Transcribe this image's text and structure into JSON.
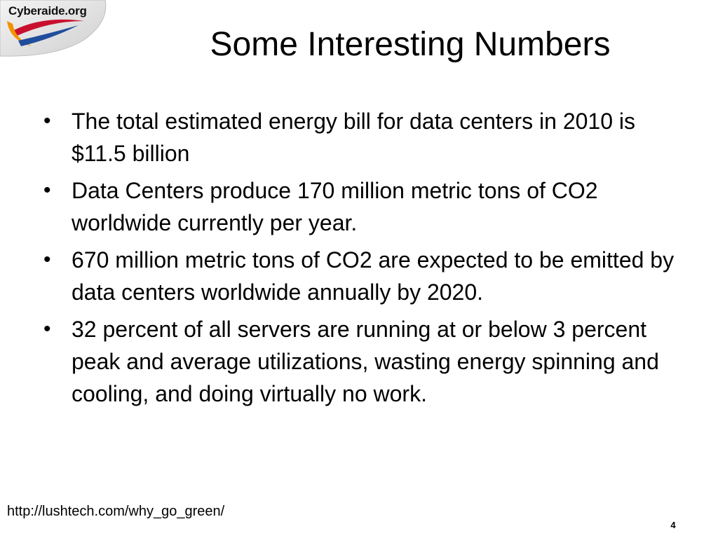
{
  "logo": {
    "text": "Cyberaide.org",
    "icon": "cyberaide-logo-icon",
    "colors": {
      "badge": "#e6e6e6",
      "swoosh_red": "#c8102e",
      "swoosh_orange": "#f39200",
      "swoosh_blue": "#1f4e9c"
    }
  },
  "slide": {
    "title": "Some Interesting Numbers",
    "bullets": [
      "The total estimated energy bill for data centers in 2010 is $11.5 billion",
      "Data Centers produce 170 million metric tons of CO2 worldwide currently per year.",
      "670 million metric tons of CO2 are expected to be emitted by data centers worldwide annually by 2020.",
      "32 percent of all servers are running at or below 3 percent peak and average utilizations, wasting energy spinning and cooling, and doing virtually no work."
    ],
    "bullet_glyph": "•"
  },
  "footer": {
    "link": "http://lushtech.com/why_go_green/",
    "page_number": "4"
  }
}
